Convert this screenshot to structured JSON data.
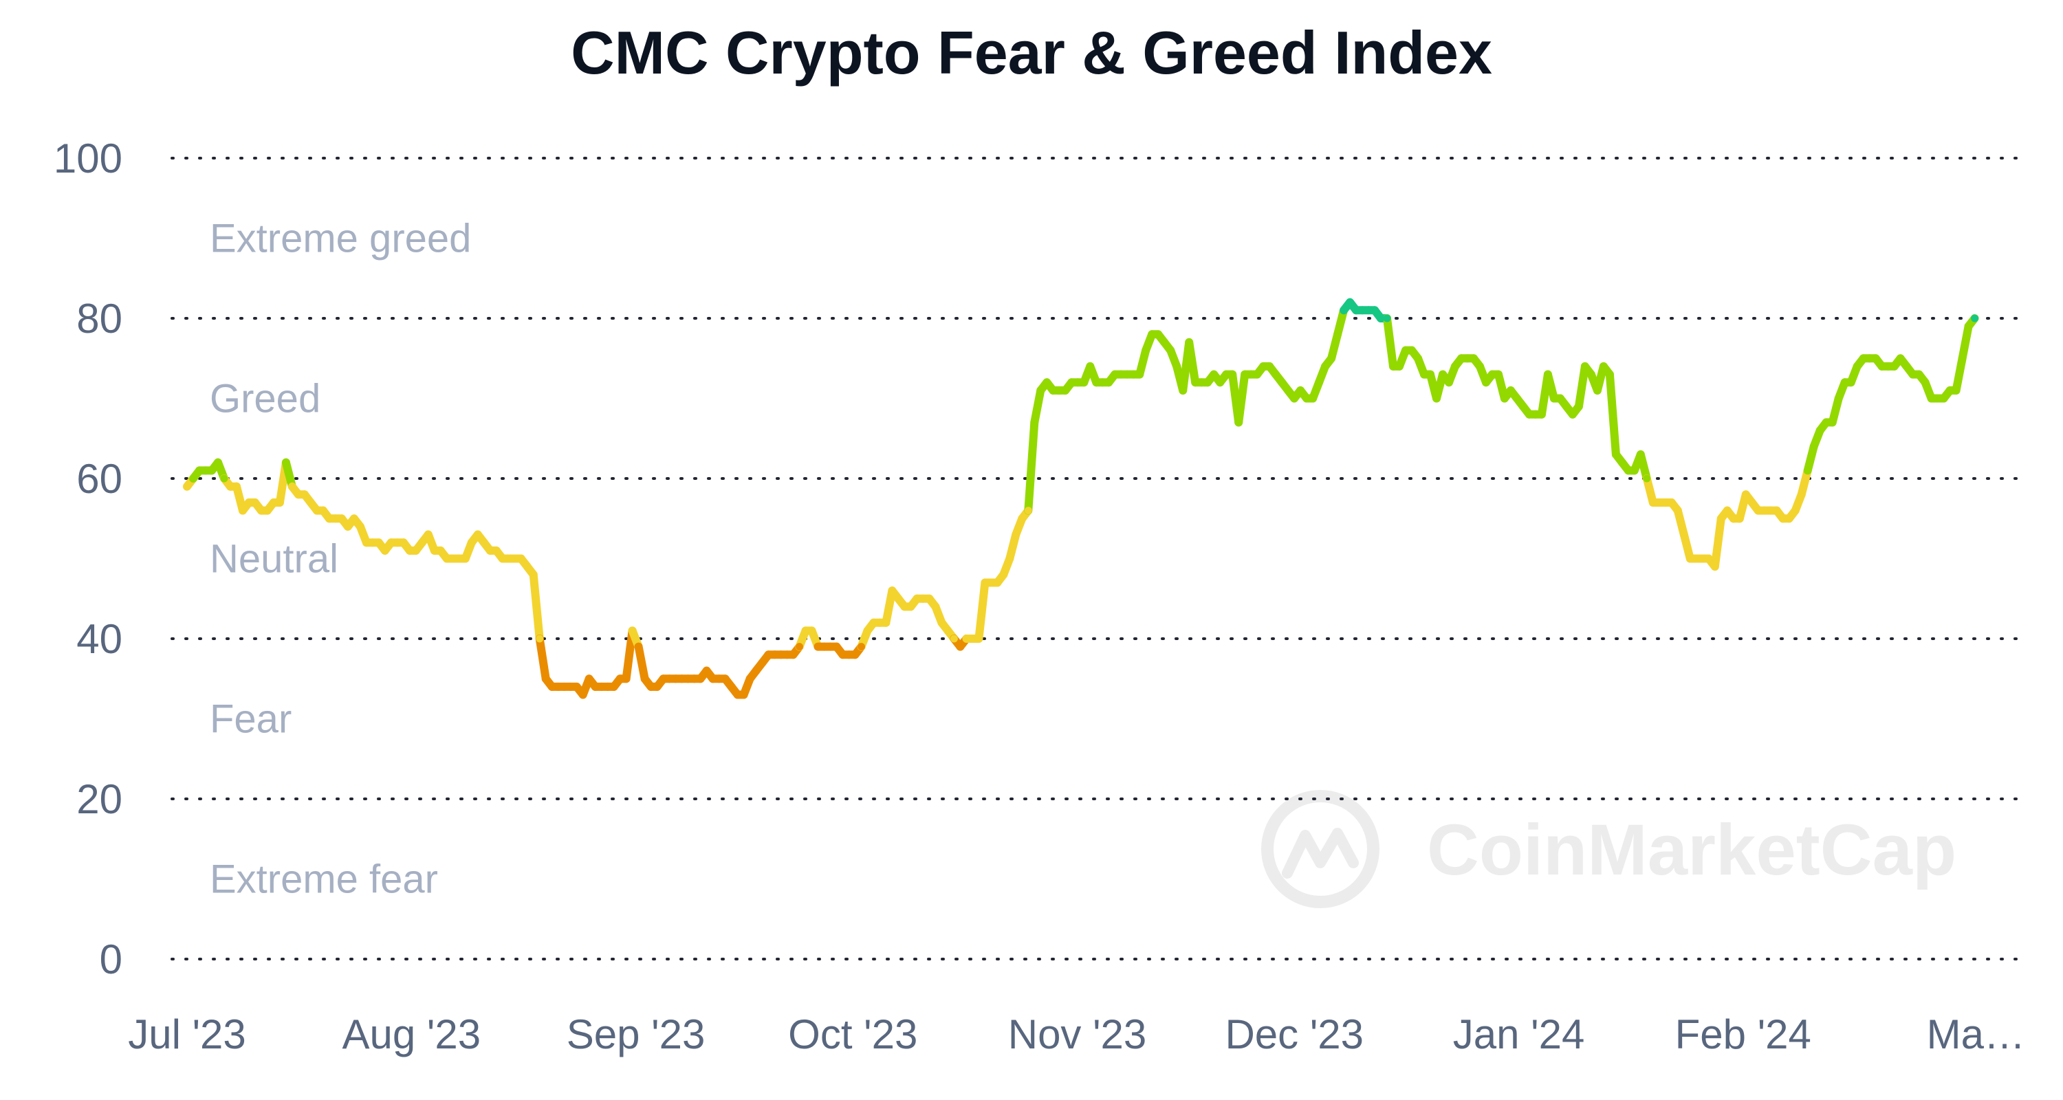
{
  "watermark": "CoinMarketCap",
  "chart_data": {
    "type": "line",
    "title": "CMC Crypto Fear & Greed Index",
    "xlabel": "",
    "ylabel": "",
    "ylim": [
      0,
      100
    ],
    "yticks": [
      "0",
      "20",
      "40",
      "60",
      "80",
      "100"
    ],
    "grid": true,
    "xticks": [
      {
        "label": "Jul '23",
        "date": "2023-07-01"
      },
      {
        "label": "Aug '23",
        "date": "2023-08-01"
      },
      {
        "label": "Sep '23",
        "date": "2023-09-01"
      },
      {
        "label": "Oct '23",
        "date": "2023-10-01"
      },
      {
        "label": "Nov '23",
        "date": "2023-11-01"
      },
      {
        "label": "Dec '23",
        "date": "2023-12-01"
      },
      {
        "label": "Jan '24",
        "date": "2024-01-01"
      },
      {
        "label": "Feb '24",
        "date": "2024-02-01"
      },
      {
        "label": "Ma…",
        "date": "2024-03-01"
      }
    ],
    "zones": [
      {
        "label": "Extreme greed",
        "range": [
          80,
          100
        ]
      },
      {
        "label": "Greed",
        "range": [
          60,
          80
        ]
      },
      {
        "label": "Neutral",
        "range": [
          40,
          60
        ]
      },
      {
        "label": "Fear",
        "range": [
          20,
          40
        ]
      },
      {
        "label": "Extreme fear",
        "range": [
          0,
          20
        ]
      }
    ],
    "zone_colors": {
      "extreme_fear": "#ea3943",
      "fear": "#ea8c00",
      "neutral": "#f3d42f",
      "greed": "#93d900",
      "extreme_greed": "#16c784"
    },
    "series": [
      {
        "x_start": "2023-07-01",
        "x_end": "2024-03-04",
        "values": [
          59,
          60,
          61,
          61,
          61,
          62,
          60,
          59,
          59,
          56,
          57,
          57,
          56,
          56,
          57,
          57,
          62,
          59,
          58,
          58,
          57,
          56,
          56,
          55,
          55,
          55,
          54,
          55,
          54,
          52,
          52,
          52,
          51,
          52,
          52,
          52,
          51,
          51,
          52,
          53,
          51,
          51,
          50,
          50,
          50,
          50,
          52,
          53,
          52,
          51,
          51,
          50,
          50,
          50,
          50,
          49,
          48,
          40,
          35,
          34,
          34,
          34,
          34,
          34,
          33,
          35,
          34,
          34,
          34,
          34,
          35,
          35,
          41,
          39,
          35,
          34,
          34,
          35,
          35,
          35,
          35,
          35,
          35,
          35,
          36,
          35,
          35,
          35,
          34,
          33,
          33,
          35,
          36,
          37,
          38,
          38,
          38,
          38,
          38,
          39,
          41,
          41,
          39,
          39,
          39,
          39,
          38,
          38,
          38,
          39,
          41,
          42,
          42,
          42,
          46,
          45,
          44,
          44,
          45,
          45,
          45,
          44,
          42,
          41,
          40,
          39,
          40,
          40,
          40,
          47,
          47,
          47,
          48,
          50,
          53,
          55,
          56,
          67,
          71,
          72,
          71,
          71,
          71,
          72,
          72,
          72,
          74,
          72,
          72,
          72,
          73,
          73,
          73,
          73,
          73,
          76,
          78,
          78,
          77,
          76,
          74,
          71,
          77,
          72,
          72,
          72,
          73,
          72,
          73,
          73,
          67,
          73,
          73,
          73,
          74,
          74,
          73,
          72,
          71,
          70,
          71,
          70,
          70,
          72,
          74,
          75,
          78,
          81,
          82,
          81,
          81,
          81,
          81,
          80,
          80,
          74,
          74,
          76,
          76,
          75,
          73,
          73,
          70,
          73,
          72,
          74,
          75,
          75,
          75,
          74,
          72,
          73,
          73,
          70,
          71,
          70,
          69,
          68,
          68,
          68,
          73,
          70,
          70,
          69,
          68,
          69,
          74,
          73,
          71,
          74,
          73,
          63,
          62,
          61,
          61,
          63,
          60,
          57,
          57,
          57,
          57,
          56,
          53,
          50,
          50,
          50,
          50,
          49,
          55,
          56,
          55,
          55,
          58,
          57,
          56,
          56,
          56,
          56,
          55,
          55,
          56,
          58,
          61,
          64,
          66,
          67,
          67,
          70,
          72,
          72,
          74,
          75,
          75,
          75,
          74,
          74,
          74,
          75,
          74,
          73,
          73,
          72,
          70,
          70,
          70,
          71,
          71,
          75,
          79,
          80
        ]
      }
    ]
  }
}
